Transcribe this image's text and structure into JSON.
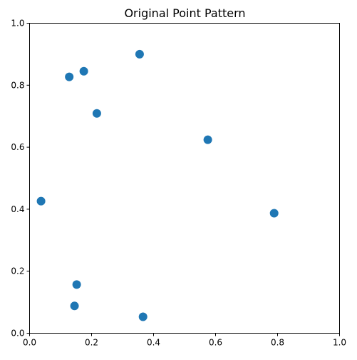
{
  "chart_data": {
    "type": "scatter",
    "title": "Original Point Pattern",
    "xlabel": "",
    "ylabel": "",
    "xlim": [
      0,
      1
    ],
    "ylim": [
      0,
      1
    ],
    "xticks": [
      0.0,
      0.2,
      0.4,
      0.6,
      0.8,
      1.0
    ],
    "yticks": [
      0.0,
      0.2,
      0.4,
      0.6,
      0.8,
      1.0
    ],
    "xtick_labels": [
      "0.0",
      "0.2",
      "0.4",
      "0.6",
      "0.8",
      "1.0"
    ],
    "ytick_labels": [
      "0.0",
      "0.2",
      "0.4",
      "0.6",
      "0.8",
      "1.0"
    ],
    "grid": false,
    "legend": "none",
    "marker_color": "#1f77b4",
    "points": [
      {
        "x": 0.355,
        "y": 0.9
      },
      {
        "x": 0.175,
        "y": 0.845
      },
      {
        "x": 0.128,
        "y": 0.827
      },
      {
        "x": 0.217,
        "y": 0.709
      },
      {
        "x": 0.575,
        "y": 0.624
      },
      {
        "x": 0.037,
        "y": 0.426
      },
      {
        "x": 0.789,
        "y": 0.387
      },
      {
        "x": 0.152,
        "y": 0.157
      },
      {
        "x": 0.145,
        "y": 0.088
      },
      {
        "x": 0.366,
        "y": 0.053
      }
    ]
  }
}
